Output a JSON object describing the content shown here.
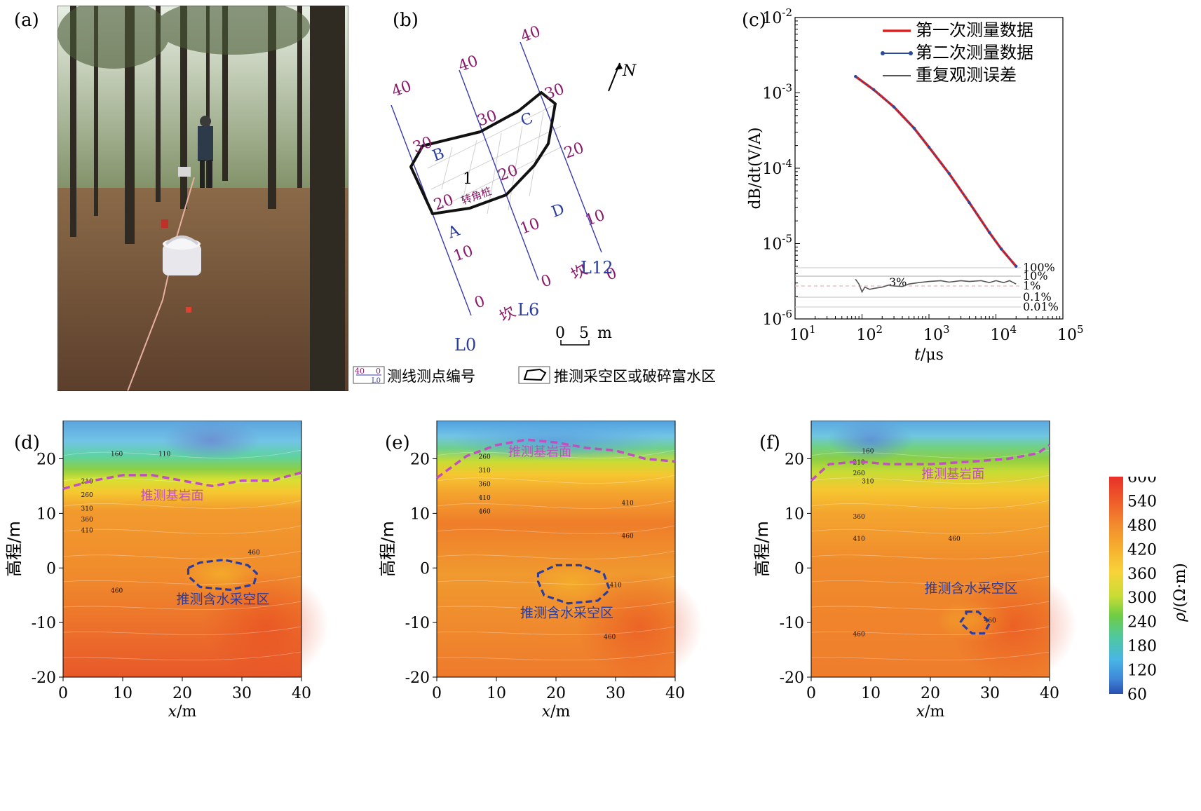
{
  "panels": {
    "a": {
      "label": "(a)"
    },
    "b": {
      "label": "(b)",
      "lines": [
        "L0",
        "L6",
        "L12"
      ],
      "stations": [
        "0",
        "10",
        "20",
        "30",
        "40"
      ],
      "corners": [
        "A",
        "B",
        "C",
        "D"
      ],
      "area_number": "1",
      "turn_pile": "转角桩",
      "slope": "坎",
      "north": "N",
      "scale": {
        "start": "0",
        "end": "5",
        "unit": "m"
      },
      "legend": {
        "line_point": "测线测点编号",
        "line_point_glyph_top": "40",
        "line_point_glyph_right": "0",
        "line_point_glyph_bottom": "L0",
        "area": "推测采空区或破碎富水区"
      }
    },
    "c": {
      "label": "(c)"
    },
    "d": {
      "label": "(d)"
    },
    "e": {
      "label": "(e)"
    },
    "f": {
      "label": "(f)"
    }
  },
  "section": {
    "xlabel": "x/m",
    "ylabel": "高程/m",
    "xticks": [
      "0",
      "10",
      "20",
      "30",
      "40"
    ],
    "yticks": [
      "20",
      "10",
      "0",
      "-10",
      "-20"
    ],
    "bedrock": "推测基岩面",
    "goaf": "推测含水采空区",
    "colorbar_label": "ρ/(Ω·m)",
    "colorbar_ticks": [
      "600",
      "540",
      "480",
      "420",
      "360",
      "300",
      "240",
      "180",
      "120",
      "60"
    ],
    "contours_d": [
      "160",
      "110",
      "210",
      "260",
      "310",
      "360",
      "410",
      "460",
      "460"
    ],
    "contours_e": [
      "260",
      "310",
      "360",
      "410",
      "460",
      "410",
      "460",
      "460",
      "410"
    ],
    "contours_f": [
      "160",
      "210",
      "260",
      "310",
      "360",
      "410",
      "460",
      "460",
      "460"
    ]
  },
  "colors": {
    "red_series": "#e02020",
    "blue_series": "#2b4a9a",
    "gray_series": "#555555",
    "purple": "#c050c0",
    "navy": "#2a3c9e",
    "station": "#8b1a6b"
  },
  "chart_data": [
    {
      "type": "line",
      "title": "",
      "xlabel": "t/μs",
      "ylabel": "dB/dt(V/A)",
      "xscale": "log",
      "yscale": "log",
      "xlim": [
        10,
        100000
      ],
      "ylim": [
        1e-06,
        0.01
      ],
      "xticks": [
        "10^1",
        "10^2",
        "10^3",
        "10^4",
        "10^5"
      ],
      "yticks": [
        "10^-2",
        "10^-3",
        "10^-4",
        "10^-5",
        "10^-6"
      ],
      "legend_position": "top-right",
      "series": [
        {
          "name": "第一次测量数据",
          "color": "#e02020",
          "x": [
            80,
            150,
            300,
            600,
            1000,
            2000,
            4000,
            8000,
            12000,
            20000
          ],
          "y": [
            0.00165,
            0.0011,
            0.00065,
            0.00034,
            0.00019,
            8.5e-05,
            3.5e-05,
            1.4e-05,
            8.5e-06,
            5e-06
          ]
        },
        {
          "name": "第二次测量数据",
          "color": "#2b4a9a",
          "x": [
            80,
            150,
            300,
            600,
            1000,
            2000,
            4000,
            8000,
            12000,
            20000
          ],
          "y": [
            0.00165,
            0.0011,
            0.00065,
            0.00034,
            0.00019,
            8.5e-05,
            3.5e-05,
            1.4e-05,
            8.5e-06,
            5e-06
          ]
        },
        {
          "name": "重复观测误差",
          "color": "#555555",
          "x": [
            80,
            90,
            100,
            110,
            130,
            150,
            200,
            250,
            300,
            400,
            500,
            700,
            1000,
            1500,
            2000,
            3000,
            4000,
            6000,
            8000,
            10000,
            13000,
            16000,
            20000
          ],
          "error_percent": [
            4,
            1.5,
            0.3,
            0.8,
            0.5,
            0.6,
            0.8,
            1.2,
            1.0,
            0.9,
            1.5,
            2.0,
            2.5,
            3.0,
            2.2,
            3.0,
            2.5,
            3.0,
            2.0,
            3.0,
            2.0,
            3.0,
            1.5
          ]
        }
      ],
      "reference_lines": [
        "100%",
        "10%",
        "1%",
        "0.1%",
        "0.01%"
      ],
      "annotation": "3%"
    },
    {
      "type": "heatmap",
      "panel": "(d)",
      "xlabel": "x/m",
      "ylabel": "高程/m",
      "xlim": [
        0,
        40
      ],
      "ylim": [
        -20,
        27
      ],
      "bedrock_x": [
        0,
        5,
        10,
        15,
        20,
        25,
        30,
        35,
        40
      ],
      "bedrock_y": [
        14.5,
        16,
        17,
        17,
        16,
        15,
        16,
        16,
        17.5
      ],
      "goaf_x": [
        21,
        23,
        27,
        31,
        32.5,
        32,
        28,
        23,
        21
      ],
      "goaf_y": [
        0,
        1,
        1.5,
        0.5,
        -1,
        -3,
        -4,
        -3.5,
        -1.5
      ]
    },
    {
      "type": "heatmap",
      "panel": "(e)",
      "xlabel": "x/m",
      "ylabel": "高程/m",
      "xlim": [
        0,
        40
      ],
      "ylim": [
        -20,
        27
      ],
      "bedrock_x": [
        0,
        5,
        10,
        15,
        20,
        25,
        30,
        35,
        40
      ],
      "bedrock_y": [
        16.5,
        20.5,
        22.5,
        23.5,
        23,
        22,
        21.5,
        20,
        19.5
      ],
      "goaf_x": [
        17,
        20,
        24,
        28,
        29,
        27,
        22,
        18,
        17
      ],
      "goaf_y": [
        -1,
        0.5,
        0.5,
        -1,
        -4,
        -6,
        -6.5,
        -5,
        -2.5
      ]
    },
    {
      "type": "heatmap",
      "panel": "(f)",
      "xlabel": "x/m",
      "ylabel": "高程/m",
      "xlim": [
        0,
        40
      ],
      "ylim": [
        -20,
        27
      ],
      "bedrock_x": [
        0,
        3,
        8,
        13,
        20,
        27,
        33,
        38,
        40
      ],
      "bedrock_y": [
        16,
        19,
        19.5,
        19,
        19,
        19.5,
        20,
        21,
        22.5
      ],
      "goaf_x": [
        26,
        28,
        29,
        30,
        29,
        27,
        25,
        26
      ],
      "goaf_y": [
        -8,
        -8,
        -9,
        -10,
        -12,
        -12,
        -10,
        -8.5
      ]
    }
  ]
}
